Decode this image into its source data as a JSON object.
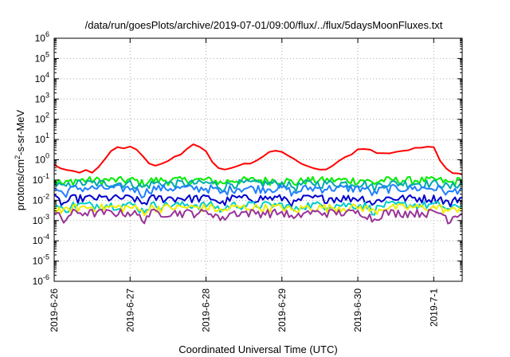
{
  "chart_data": {
    "type": "line",
    "title": "/data/run/goesPlots/archive/2019-07-01/09:00/flux/../flux/5daysMoonFluxes.txt",
    "xlabel": "Coordinated Universal Time (UTC)",
    "ylabel_parts": [
      "protons/cm",
      "2",
      "-s-sr-MeV"
    ],
    "y_scale": "log",
    "ylim": [
      1e-06,
      1000000.0
    ],
    "y_ticks": [
      {
        "base": "10",
        "exp": "-6",
        "value": -6
      },
      {
        "base": "10",
        "exp": "-5",
        "value": -5
      },
      {
        "base": "10",
        "exp": "-4",
        "value": -4
      },
      {
        "base": "10",
        "exp": "-3",
        "value": -3
      },
      {
        "base": "10",
        "exp": "-2",
        "value": -2
      },
      {
        "base": "10",
        "exp": "-1",
        "value": -1
      },
      {
        "base": "10",
        "exp": "0",
        "value": 0
      },
      {
        "base": "10",
        "exp": "1",
        "value": 1
      },
      {
        "base": "10",
        "exp": "2",
        "value": 2
      },
      {
        "base": "10",
        "exp": "3",
        "value": 3
      },
      {
        "base": "10",
        "exp": "4",
        "value": 4
      },
      {
        "base": "10",
        "exp": "5",
        "value": 5
      },
      {
        "base": "10",
        "exp": "6",
        "value": 6
      }
    ],
    "xlim": [
      "2019-06-26 00:00",
      "2019-07-01 09:00"
    ],
    "x_ticks": [
      "2019-6-26",
      "2019-6-27",
      "2019-6-28",
      "2019-6-29",
      "2019-6-30",
      "2019-7-1"
    ],
    "grid": true,
    "series": [
      {
        "color": "#ff0000",
        "kind": "smooth",
        "points": [
          [
            "2019-06-26 00:00",
            0.55
          ],
          [
            "2019-06-26 02:00",
            0.4
          ],
          [
            "2019-06-26 04:00",
            0.3
          ],
          [
            "2019-06-26 06:00",
            0.25
          ],
          [
            "2019-06-26 08:00",
            0.22
          ],
          [
            "2019-06-26 10:00",
            0.3
          ],
          [
            "2019-06-26 12:00",
            0.25
          ],
          [
            "2019-06-26 14:00",
            0.4
          ],
          [
            "2019-06-26 16:00",
            1.0
          ],
          [
            "2019-06-26 18:00",
            2.5
          ],
          [
            "2019-06-26 20:00",
            4.0
          ],
          [
            "2019-06-26 22:00",
            3.8
          ],
          [
            "2019-06-27 00:00",
            4.2
          ],
          [
            "2019-06-27 02:00",
            3.5
          ],
          [
            "2019-06-27 04:00",
            1.5
          ],
          [
            "2019-06-27 06:00",
            0.7
          ],
          [
            "2019-06-27 08:00",
            0.55
          ],
          [
            "2019-06-27 10:00",
            0.6
          ],
          [
            "2019-06-27 12:00",
            0.8
          ],
          [
            "2019-06-27 14:00",
            1.3
          ],
          [
            "2019-06-27 16:00",
            2.0
          ],
          [
            "2019-06-27 18:00",
            3.5
          ],
          [
            "2019-06-27 20:00",
            5.5
          ],
          [
            "2019-06-27 22:00",
            4.5
          ],
          [
            "2019-06-28 00:00",
            2.8
          ],
          [
            "2019-06-28 02:00",
            0.8
          ],
          [
            "2019-06-28 04:00",
            0.35
          ],
          [
            "2019-06-28 06:00",
            0.3
          ],
          [
            "2019-06-28 08:00",
            0.4
          ],
          [
            "2019-06-28 10:00",
            0.5
          ],
          [
            "2019-06-28 12:00",
            0.6
          ],
          [
            "2019-06-28 14:00",
            0.7
          ],
          [
            "2019-06-28 16:00",
            1.0
          ],
          [
            "2019-06-28 18:00",
            1.5
          ],
          [
            "2019-06-28 20:00",
            2.5
          ],
          [
            "2019-06-28 22:00",
            2.8
          ],
          [
            "2019-06-29 00:00",
            2.2
          ],
          [
            "2019-06-29 02:00",
            1.6
          ],
          [
            "2019-06-29 04:00",
            1.0
          ],
          [
            "2019-06-29 06:00",
            0.7
          ],
          [
            "2019-06-29 08:00",
            0.5
          ],
          [
            "2019-06-29 10:00",
            0.35
          ],
          [
            "2019-06-29 12:00",
            0.3
          ],
          [
            "2019-06-29 14:00",
            0.35
          ],
          [
            "2019-06-29 16:00",
            0.5
          ],
          [
            "2019-06-29 18:00",
            0.8
          ],
          [
            "2019-06-29 20:00",
            1.3
          ],
          [
            "2019-06-29 22:00",
            2.0
          ],
          [
            "2019-06-30 00:00",
            3.2
          ],
          [
            "2019-06-30 02:00",
            3.8
          ],
          [
            "2019-06-30 04:00",
            3.0
          ],
          [
            "2019-06-30 06:00",
            2.2
          ],
          [
            "2019-06-30 08:00",
            2.0
          ],
          [
            "2019-06-30 10:00",
            2.2
          ],
          [
            "2019-06-30 12:00",
            2.5
          ],
          [
            "2019-06-30 14:00",
            2.8
          ],
          [
            "2019-06-30 16:00",
            3.0
          ],
          [
            "2019-06-30 18:00",
            3.5
          ],
          [
            "2019-06-30 20:00",
            4.0
          ],
          [
            "2019-06-30 22:00",
            5.0
          ],
          [
            "2019-07-01 00:00",
            4.5
          ],
          [
            "2019-07-01 02:00",
            1.0
          ],
          [
            "2019-07-01 04:00",
            0.35
          ],
          [
            "2019-07-01 06:00",
            0.25
          ],
          [
            "2019-07-01 08:00",
            0.22
          ],
          [
            "2019-07-01 09:00",
            0.2
          ]
        ]
      },
      {
        "color": "#00ee00",
        "kind": "noisy",
        "base": 0.1,
        "dips": [
          [
            "2019-06-26 03:00",
            0.6
          ],
          [
            "2019-06-27 04:00",
            0.7
          ],
          [
            "2019-06-28 05:00",
            0.7
          ],
          [
            "2019-06-29 04:00",
            0.7
          ],
          [
            "2019-06-30 05:00",
            0.7
          ],
          [
            "2019-07-01 05:00",
            0.7
          ]
        ]
      },
      {
        "color": "#00aaaa",
        "kind": "noisy",
        "base": 0.07,
        "dips": [
          [
            "2019-06-26 03:00",
            0.6
          ],
          [
            "2019-06-27 04:00",
            0.6
          ],
          [
            "2019-06-28 05:00",
            0.6
          ],
          [
            "2019-06-29 04:00",
            0.6
          ],
          [
            "2019-06-30 05:00",
            0.6
          ],
          [
            "2019-07-01 05:00",
            0.6
          ]
        ]
      },
      {
        "color": "#1e7fff",
        "kind": "noisy",
        "base": 0.04,
        "dips": [
          [
            "2019-06-26 03:00",
            0.5
          ],
          [
            "2019-06-27 04:00",
            0.5
          ],
          [
            "2019-06-28 05:00",
            0.5
          ],
          [
            "2019-06-29 04:00",
            0.5
          ],
          [
            "2019-06-30 05:00",
            0.5
          ],
          [
            "2019-07-01 05:00",
            0.5
          ]
        ]
      },
      {
        "color": "#0000cc",
        "kind": "noisy",
        "base": 0.013,
        "dips": [
          [
            "2019-06-26 03:00",
            0.5
          ],
          [
            "2019-06-27 04:00",
            0.5
          ],
          [
            "2019-06-28 05:00",
            0.5
          ],
          [
            "2019-06-29 04:00",
            0.5
          ],
          [
            "2019-06-30 05:00",
            0.5
          ],
          [
            "2019-07-01 05:00",
            0.5
          ]
        ]
      },
      {
        "color": "#00cccc",
        "kind": "noisy",
        "base": 0.006,
        "dips": [
          [
            "2019-06-26 03:00",
            0.5
          ],
          [
            "2019-06-27 04:00",
            0.5
          ],
          [
            "2019-06-28 05:00",
            0.5
          ],
          [
            "2019-06-29 04:00",
            0.5
          ],
          [
            "2019-06-30 05:00",
            0.5
          ],
          [
            "2019-07-01 05:00",
            0.5
          ]
        ]
      },
      {
        "color": "#eeee00",
        "kind": "noisy",
        "base": 0.0045,
        "dips": [
          [
            "2019-06-26 03:00",
            0.6
          ],
          [
            "2019-06-27 04:00",
            0.6
          ],
          [
            "2019-06-28 05:00",
            0.6
          ],
          [
            "2019-06-29 04:00",
            0.6
          ],
          [
            "2019-06-30 05:00",
            0.6
          ],
          [
            "2019-07-01 05:00",
            0.6
          ]
        ]
      },
      {
        "color": "#993399",
        "kind": "noisy",
        "base": 0.0025,
        "dips": [
          [
            "2019-06-26 03:00",
            0.35
          ],
          [
            "2019-06-27 04:00",
            0.4
          ],
          [
            "2019-06-28 05:00",
            0.4
          ],
          [
            "2019-06-29 04:00",
            0.4
          ],
          [
            "2019-06-30 05:00",
            0.4
          ],
          [
            "2019-07-01 05:00",
            0.4
          ]
        ]
      }
    ]
  }
}
